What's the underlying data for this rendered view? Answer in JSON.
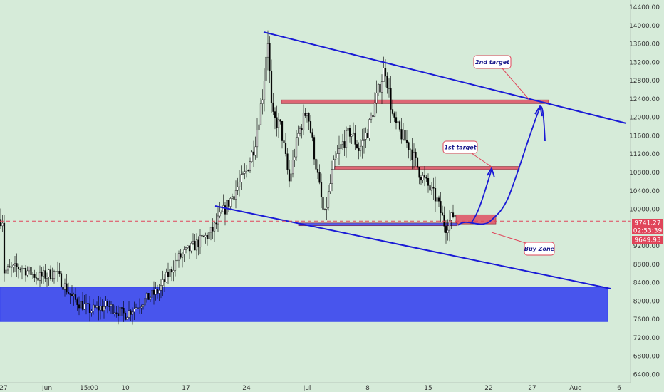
{
  "chart_data": {
    "type": "candlestick",
    "y_axis": {
      "ticks": [
        "14400.00",
        "14000.00",
        "13600.00",
        "13200.00",
        "12800.00",
        "12400.00",
        "12000.00",
        "11600.00",
        "11200.00",
        "10800.00",
        "10400.00",
        "10000.00",
        "9600.00",
        "9200.00",
        "8800.00",
        "8400.00",
        "8000.00",
        "7600.00",
        "7200.00",
        "6800.00",
        "6400.00"
      ],
      "range": [
        6300,
        14650
      ]
    },
    "x_axis": {
      "ticks": [
        "27",
        "Jun",
        "15:00",
        "10",
        "17",
        "24",
        "Jul",
        "8",
        "15",
        "22",
        "27",
        "Aug",
        "6"
      ],
      "range": [
        "May 27",
        "Aug 8"
      ]
    },
    "price_labels": {
      "last": "9741.27",
      "countdown": "02:53:39",
      "low": "9649.93"
    },
    "annotations": [
      {
        "name": "2nd target",
        "text": "2nd target"
      },
      {
        "name": "1st target",
        "text": "1st target"
      },
      {
        "name": "Buy Zone",
        "text": "Buy Zone"
      }
    ],
    "zones": [
      {
        "name": "demand-zone",
        "from": 7550,
        "to": 8300,
        "color": "#2f3bf0"
      },
      {
        "name": "second-target-zone",
        "from": 12300,
        "to": 12380,
        "color": "#e0455a"
      },
      {
        "name": "first-target-zone",
        "from": 10870,
        "to": 10930,
        "color": "#e0455a"
      },
      {
        "name": "buy-zone",
        "from": 9680,
        "to": 9880,
        "color": "#e0455a"
      },
      {
        "name": "support-band",
        "from": 9640,
        "to": 9700,
        "color": "#2f3bf0"
      }
    ],
    "trendlines": [
      {
        "name": "upper-channel",
        "from": [
          "Jun 25",
          13900
        ],
        "to": [
          "Aug 6",
          11870
        ]
      },
      {
        "name": "lower-channel",
        "from": [
          "Jun 22",
          10120
        ],
        "to": [
          "Aug 6",
          8300
        ]
      }
    ],
    "current_price_line": 9741.27,
    "colors": {
      "background": "#d6ebd9",
      "channel": "#1a1ad6",
      "target": "#e0455a",
      "candle": "#000000",
      "price_line": "#e0455a"
    }
  }
}
